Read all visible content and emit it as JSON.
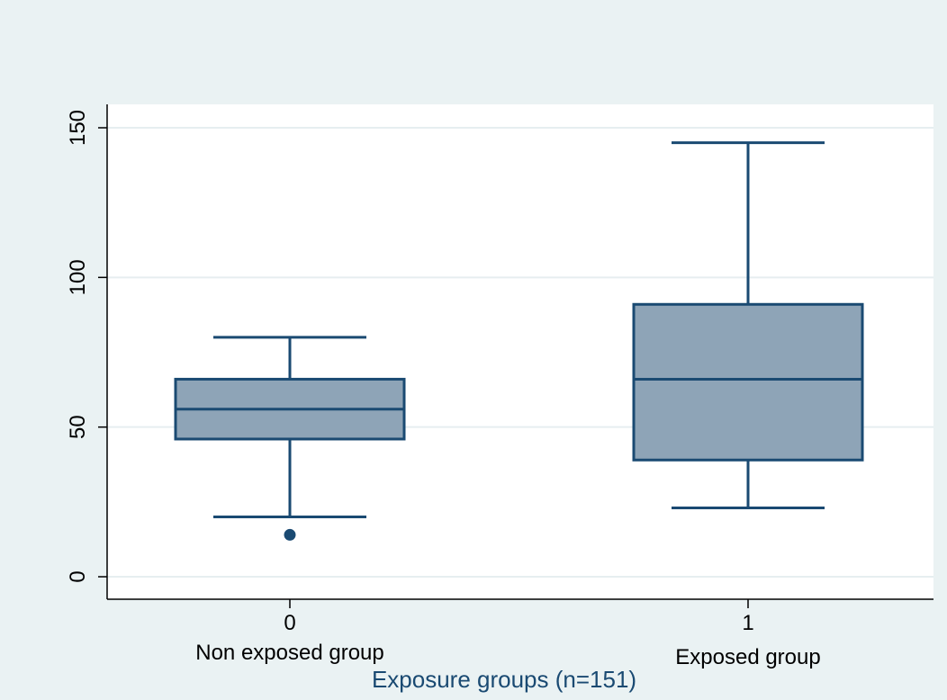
{
  "chart_data": {
    "type": "box",
    "xlabel": "Exposure groups (n=151)",
    "ylabel": "",
    "ylim": [
      -8,
      160
    ],
    "y_ticks": [
      0,
      50,
      100,
      150
    ],
    "grid": true,
    "groups": [
      {
        "code": "0",
        "label": "Non exposed group",
        "whisker_low": 20,
        "q1": 46,
        "median": 56,
        "q3": 66,
        "whisker_high": 80,
        "outliers": [
          14
        ]
      },
      {
        "code": "1",
        "label": "Exposed group",
        "whisker_low": 23,
        "q1": 39,
        "median": 66,
        "q3": 91,
        "whisker_high": 145,
        "outliers": []
      }
    ],
    "colors": {
      "background": "#eaf2f3",
      "plot_background": "#ffffff",
      "box_fill": "#8ea4b7",
      "box_stroke": "#1a4a72",
      "gridline": "#e6eef0",
      "axis": "#000000",
      "xlabel": "#1a4a72"
    }
  }
}
